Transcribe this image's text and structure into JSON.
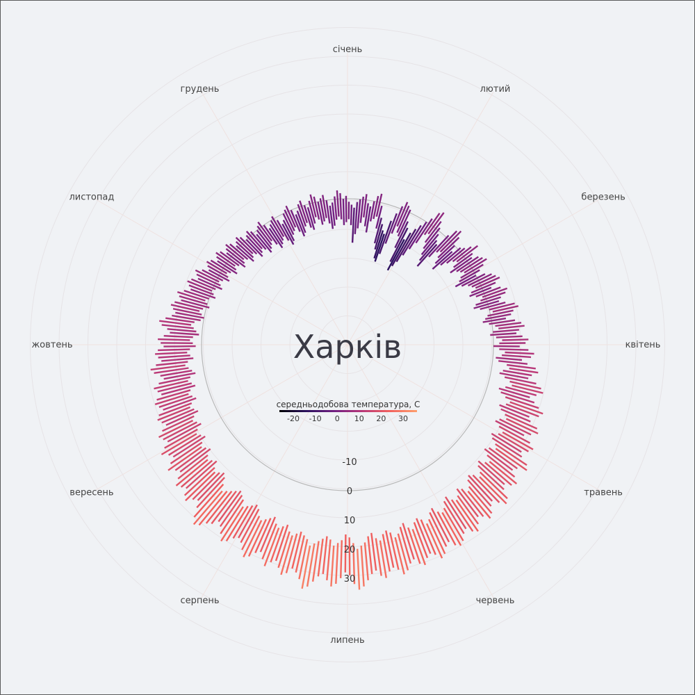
{
  "chart_data": {
    "type": "radial-bar",
    "title": "Харків",
    "months": [
      "січень",
      "лютий",
      "березень",
      "квітень",
      "травень",
      "червень",
      "липень",
      "серпень",
      "вересень",
      "жовтень",
      "листопад",
      "грудень"
    ],
    "radial_ticks": [
      "-10",
      "0",
      "10",
      "20",
      "30"
    ],
    "radial_tick_values": [
      -10,
      0,
      10,
      20,
      30
    ],
    "legend": {
      "title": "середньодобова температура, С",
      "ticks": [
        "-20",
        "-10",
        "0",
        "10",
        "20",
        "30"
      ],
      "tick_values": [
        -20,
        -10,
        0,
        10,
        20,
        30
      ]
    },
    "colorscale": [
      "#000004",
      "#2c115f",
      "#721f81",
      "#b73779",
      "#f1605d",
      "#fe9f6d"
    ],
    "daily_ranges": [
      [
        -7,
        -1
      ],
      [
        -9,
        -2
      ],
      [
        -15,
        -3
      ],
      [
        -12,
        -1
      ],
      [
        -10,
        0
      ],
      [
        -8,
        1
      ],
      [
        -6,
        2
      ],
      [
        -9,
        -1
      ],
      [
        -11,
        -2
      ],
      [
        -7,
        0
      ],
      [
        -6,
        2
      ],
      [
        -5,
        3
      ],
      [
        -9,
        -1
      ],
      [
        -14,
        -5
      ],
      [
        -16,
        -7
      ],
      [
        -19,
        -9
      ],
      [
        -20,
        -10
      ],
      [
        -17,
        -5
      ],
      [
        -13,
        -2
      ],
      [
        -9,
        1
      ],
      [
        -6,
        3
      ],
      [
        -8,
        2
      ],
      [
        -9,
        1
      ],
      [
        -13,
        -3
      ],
      [
        -18,
        -5
      ],
      [
        -21,
        -9
      ],
      [
        -19,
        -6
      ],
      [
        -17,
        -4
      ],
      [
        -14,
        -2
      ],
      [
        -11,
        0
      ],
      [
        -8,
        2
      ],
      [
        -4,
        5
      ],
      [
        -3,
        6
      ],
      [
        -6,
        3
      ],
      [
        -8,
        1
      ],
      [
        -10,
        -1
      ],
      [
        -12,
        -3
      ],
      [
        -14,
        -4
      ],
      [
        -9,
        1
      ],
      [
        -6,
        4
      ],
      [
        -5,
        5
      ],
      [
        -7,
        3
      ],
      [
        -9,
        0
      ],
      [
        -11,
        -2
      ],
      [
        -8,
        1
      ],
      [
        -6,
        2
      ],
      [
        -4,
        4
      ],
      [
        -3,
        6
      ],
      [
        -5,
        3
      ],
      [
        -7,
        2
      ],
      [
        -5,
        4
      ],
      [
        -4,
        5
      ],
      [
        -3,
        6
      ],
      [
        -5,
        4
      ],
      [
        -6,
        2
      ],
      [
        -8,
        0
      ],
      [
        -6,
        3
      ],
      [
        -4,
        5
      ],
      [
        -3,
        6
      ],
      [
        -2,
        7
      ],
      [
        -4,
        5
      ],
      [
        -5,
        3
      ],
      [
        -3,
        6
      ],
      [
        -1,
        8
      ],
      [
        -2,
        7
      ],
      [
        -4,
        5
      ],
      [
        -5,
        4
      ],
      [
        -3,
        6
      ],
      [
        0,
        9
      ],
      [
        1,
        10
      ],
      [
        -1,
        8
      ],
      [
        -2,
        7
      ],
      [
        -3,
        5
      ],
      [
        -1,
        8
      ],
      [
        1,
        10
      ],
      [
        2,
        11
      ],
      [
        0,
        9
      ],
      [
        -1,
        8
      ],
      [
        1,
        10
      ],
      [
        3,
        12
      ],
      [
        2,
        11
      ],
      [
        0,
        9
      ],
      [
        2,
        12
      ],
      [
        4,
        14
      ],
      [
        3,
        13
      ],
      [
        1,
        10
      ],
      [
        2,
        12
      ],
      [
        5,
        15
      ],
      [
        6,
        16
      ],
      [
        4,
        14
      ],
      [
        3,
        13
      ],
      [
        5,
        16
      ],
      [
        7,
        18
      ],
      [
        8,
        19
      ],
      [
        6,
        17
      ],
      [
        4,
        15
      ],
      [
        5,
        17
      ],
      [
        7,
        19
      ],
      [
        9,
        21
      ],
      [
        8,
        20
      ],
      [
        6,
        17
      ],
      [
        7,
        18
      ],
      [
        9,
        21
      ],
      [
        10,
        22
      ],
      [
        8,
        20
      ],
      [
        7,
        18
      ],
      [
        9,
        21
      ],
      [
        11,
        23
      ],
      [
        10,
        22
      ],
      [
        8,
        20
      ],
      [
        9,
        21
      ],
      [
        11,
        24
      ],
      [
        12,
        25
      ],
      [
        10,
        22
      ],
      [
        9,
        21
      ],
      [
        11,
        23
      ],
      [
        13,
        25
      ],
      [
        12,
        24
      ],
      [
        10,
        22
      ],
      [
        11,
        23
      ],
      [
        13,
        26
      ],
      [
        14,
        27
      ],
      [
        12,
        25
      ],
      [
        11,
        23
      ],
      [
        12,
        24
      ],
      [
        14,
        26
      ],
      [
        15,
        27
      ],
      [
        13,
        25
      ],
      [
        12,
        24
      ],
      [
        14,
        26
      ],
      [
        15,
        28
      ],
      [
        14,
        27
      ],
      [
        12,
        25
      ],
      [
        13,
        26
      ],
      [
        15,
        28
      ],
      [
        16,
        29
      ],
      [
        15,
        28
      ],
      [
        13,
        26
      ],
      [
        14,
        27
      ],
      [
        16,
        29
      ],
      [
        17,
        30
      ],
      [
        15,
        28
      ],
      [
        14,
        27
      ],
      [
        15,
        28
      ],
      [
        17,
        30
      ],
      [
        16,
        29
      ],
      [
        14,
        27
      ],
      [
        15,
        28
      ],
      [
        17,
        30
      ],
      [
        18,
        31
      ],
      [
        16,
        29
      ],
      [
        15,
        28
      ],
      [
        16,
        29
      ],
      [
        18,
        31
      ],
      [
        17,
        30
      ],
      [
        15,
        28
      ],
      [
        16,
        29
      ],
      [
        18,
        31
      ],
      [
        19,
        33
      ],
      [
        20,
        34
      ],
      [
        18,
        32
      ],
      [
        16,
        29
      ],
      [
        15,
        28
      ],
      [
        17,
        30
      ],
      [
        18,
        32
      ],
      [
        19,
        33
      ],
      [
        17,
        31
      ],
      [
        16,
        29
      ],
      [
        17,
        30
      ],
      [
        18,
        32
      ],
      [
        19,
        34
      ],
      [
        20,
        35
      ],
      [
        18,
        32
      ],
      [
        17,
        30
      ],
      [
        16,
        29
      ],
      [
        17,
        31
      ],
      [
        18,
        32
      ],
      [
        17,
        30
      ],
      [
        15,
        28
      ],
      [
        16,
        29
      ],
      [
        17,
        31
      ],
      [
        16,
        29
      ],
      [
        14,
        27
      ],
      [
        15,
        28
      ],
      [
        16,
        30
      ],
      [
        17,
        31
      ],
      [
        16,
        29
      ],
      [
        14,
        27
      ],
      [
        13,
        26
      ],
      [
        14,
        27
      ],
      [
        15,
        29
      ],
      [
        16,
        30
      ],
      [
        14,
        28
      ],
      [
        13,
        26
      ],
      [
        12,
        25
      ],
      [
        13,
        27
      ],
      [
        14,
        28
      ],
      [
        15,
        30
      ],
      [
        16,
        31
      ],
      [
        14,
        29
      ],
      [
        12,
        26
      ],
      [
        11,
        24
      ],
      [
        12,
        25
      ],
      [
        13,
        27
      ],
      [
        12,
        26
      ],
      [
        10,
        24
      ],
      [
        11,
        25
      ],
      [
        12,
        26
      ],
      [
        11,
        24
      ],
      [
        9,
        22
      ],
      [
        10,
        23
      ],
      [
        11,
        25
      ],
      [
        10,
        23
      ],
      [
        8,
        21
      ],
      [
        9,
        22
      ],
      [
        10,
        24
      ],
      [
        9,
        22
      ],
      [
        7,
        20
      ],
      [
        8,
        21
      ],
      [
        9,
        22
      ],
      [
        8,
        20
      ],
      [
        6,
        18
      ],
      [
        7,
        19
      ],
      [
        8,
        20
      ],
      [
        7,
        19
      ],
      [
        5,
        17
      ],
      [
        6,
        18
      ],
      [
        7,
        19
      ],
      [
        6,
        18
      ],
      [
        4,
        16
      ],
      [
        5,
        17
      ],
      [
        6,
        18
      ],
      [
        5,
        16
      ],
      [
        3,
        14
      ],
      [
        4,
        15
      ],
      [
        5,
        17
      ],
      [
        6,
        18
      ],
      [
        5,
        16
      ],
      [
        3,
        14
      ],
      [
        4,
        15
      ],
      [
        5,
        16
      ],
      [
        4,
        15
      ],
      [
        2,
        13
      ],
      [
        3,
        14
      ],
      [
        4,
        15
      ],
      [
        3,
        13
      ],
      [
        1,
        11
      ],
      [
        2,
        12
      ],
      [
        3,
        14
      ],
      [
        4,
        15
      ],
      [
        3,
        13
      ],
      [
        1,
        11
      ],
      [
        0,
        10
      ],
      [
        1,
        11
      ],
      [
        2,
        12
      ],
      [
        1,
        11
      ],
      [
        -1,
        9
      ],
      [
        0,
        10
      ],
      [
        1,
        11
      ],
      [
        0,
        9
      ],
      [
        -2,
        7
      ],
      [
        -1,
        8
      ],
      [
        0,
        9
      ],
      [
        -1,
        8
      ],
      [
        -3,
        6
      ],
      [
        -2,
        7
      ],
      [
        -1,
        8
      ],
      [
        -2,
        6
      ],
      [
        -4,
        4
      ],
      [
        -3,
        5
      ],
      [
        -2,
        6
      ],
      [
        -3,
        5
      ],
      [
        -5,
        3
      ],
      [
        -4,
        4
      ],
      [
        -3,
        5
      ],
      [
        -4,
        4
      ],
      [
        -6,
        2
      ],
      [
        -5,
        3
      ],
      [
        -4,
        4
      ],
      [
        -5,
        3
      ],
      [
        -7,
        1
      ],
      [
        -6,
        2
      ],
      [
        -5,
        3
      ],
      [
        -6,
        2
      ],
      [
        -8,
        0
      ],
      [
        -7,
        1
      ],
      [
        -6,
        2
      ],
      [
        -7,
        1
      ],
      [
        -9,
        -1
      ],
      [
        -8,
        0
      ],
      [
        -7,
        1
      ],
      [
        -6,
        2
      ],
      [
        -8,
        0
      ],
      [
        -10,
        -2
      ],
      [
        -9,
        -1
      ],
      [
        -8,
        0
      ],
      [
        -7,
        1
      ],
      [
        -9,
        -1
      ],
      [
        -11,
        -3
      ],
      [
        -10,
        -2
      ],
      [
        -8,
        0
      ],
      [
        -7,
        1
      ],
      [
        -6,
        2
      ],
      [
        -8,
        0
      ],
      [
        -10,
        -2
      ],
      [
        -9,
        -1
      ],
      [
        -7,
        1
      ],
      [
        -6,
        2
      ],
      [
        -8,
        0
      ],
      [
        -9,
        -1
      ],
      [
        -7,
        1
      ],
      [
        -5,
        3
      ],
      [
        -6,
        2
      ],
      [
        -8,
        0
      ],
      [
        -7,
        1
      ],
      [
        -6,
        2
      ],
      [
        -8,
        0
      ],
      [
        -10,
        -2
      ],
      [
        -9,
        -1
      ],
      [
        -7,
        1
      ],
      [
        -6,
        3
      ],
      [
        -7,
        2
      ],
      [
        -9,
        0
      ],
      [
        -8,
        1
      ]
    ]
  }
}
